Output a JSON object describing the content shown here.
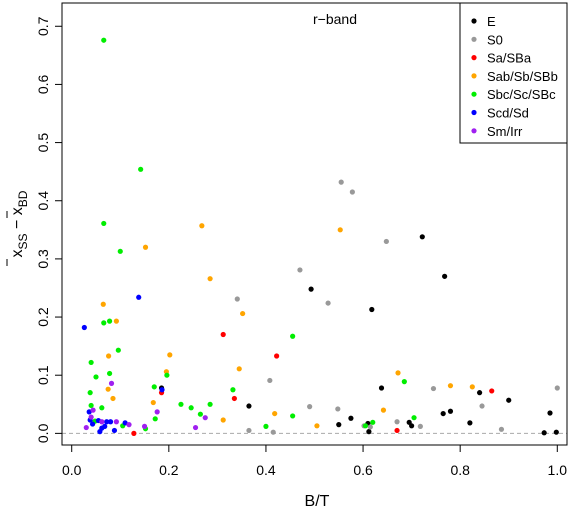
{
  "chart_data": {
    "type": "scatter",
    "title": "",
    "annotation": "r−band",
    "xlabel": "B/T",
    "ylabel": "x̄SS − x̄BD",
    "xlim": [
      -0.02,
      1.02
    ],
    "ylim": [
      -0.02,
      0.74
    ],
    "xticks": [
      "0.0",
      "0.2",
      "0.4",
      "0.6",
      "0.8",
      "1.0"
    ],
    "yticks": [
      "0.0",
      "0.1",
      "0.2",
      "0.3",
      "0.4",
      "0.5",
      "0.6",
      "0.7"
    ],
    "xtick_values": [
      0.0,
      0.2,
      0.4,
      0.6,
      0.8,
      1.0
    ],
    "ytick_values": [
      0.0,
      0.1,
      0.2,
      0.3,
      0.4,
      0.5,
      0.6,
      0.7
    ],
    "reference_line": 0.0,
    "grid": false,
    "legend_position": "top-right",
    "series": [
      {
        "name": "E",
        "color": "#000000",
        "points": [
          [
            0.722,
            0.338
          ],
          [
            0.768,
            0.27
          ],
          [
            0.493,
            0.248
          ],
          [
            0.618,
            0.213
          ],
          [
            0.365,
            0.047
          ],
          [
            0.575,
            0.026
          ],
          [
            0.55,
            0.015
          ],
          [
            0.61,
            0.017
          ],
          [
            0.612,
            0.003
          ],
          [
            0.638,
            0.078
          ],
          [
            0.695,
            0.019
          ],
          [
            0.7,
            0.013
          ],
          [
            0.765,
            0.034
          ],
          [
            0.78,
            0.038
          ],
          [
            0.82,
            0.018
          ],
          [
            0.84,
            0.07
          ],
          [
            0.9,
            0.057
          ],
          [
            0.973,
            0.001
          ],
          [
            0.985,
            0.035
          ],
          [
            0.998,
            0.002
          ],
          [
            0.185,
            0.078
          ]
        ]
      },
      {
        "name": "S0",
        "color": "#999999",
        "points": [
          [
            0.555,
            0.432
          ],
          [
            0.578,
            0.415
          ],
          [
            0.648,
            0.33
          ],
          [
            0.47,
            0.281
          ],
          [
            0.528,
            0.224
          ],
          [
            0.341,
            0.231
          ],
          [
            0.408,
            0.091
          ],
          [
            0.49,
            0.046
          ],
          [
            0.548,
            0.042
          ],
          [
            0.602,
            0.013
          ],
          [
            0.615,
            0.011
          ],
          [
            0.67,
            0.02
          ],
          [
            0.718,
            0.012
          ],
          [
            0.745,
            0.077
          ],
          [
            0.845,
            0.047
          ],
          [
            0.885,
            0.007
          ],
          [
            1.0,
            0.078
          ],
          [
            0.365,
            0.005
          ],
          [
            0.415,
            0.002
          ]
        ]
      },
      {
        "name": "Sa/SBa",
        "color": "#ff0000",
        "points": [
          [
            0.312,
            0.17
          ],
          [
            0.422,
            0.133
          ],
          [
            0.335,
            0.06
          ],
          [
            0.185,
            0.07
          ],
          [
            0.67,
            0.005
          ],
          [
            0.865,
            0.073
          ],
          [
            0.128,
            0.0
          ]
        ]
      },
      {
        "name": "Sab/Sb/SBb",
        "color": "#ffa500",
        "points": [
          [
            0.553,
            0.35
          ],
          [
            0.268,
            0.357
          ],
          [
            0.152,
            0.32
          ],
          [
            0.285,
            0.266
          ],
          [
            0.065,
            0.222
          ],
          [
            0.092,
            0.193
          ],
          [
            0.352,
            0.206
          ],
          [
            0.202,
            0.135
          ],
          [
            0.076,
            0.133
          ],
          [
            0.345,
            0.111
          ],
          [
            0.672,
            0.104
          ],
          [
            0.642,
            0.04
          ],
          [
            0.168,
            0.053
          ],
          [
            0.312,
            0.023
          ],
          [
            0.418,
            0.034
          ],
          [
            0.505,
            0.013
          ],
          [
            0.075,
            0.076
          ],
          [
            0.78,
            0.082
          ],
          [
            0.825,
            0.08
          ],
          [
            0.085,
            0.06
          ],
          [
            0.195,
            0.106
          ]
        ]
      },
      {
        "name": "Sbc/Sc/SBc",
        "color": "#00ee00",
        "points": [
          [
            0.066,
            0.676
          ],
          [
            0.142,
            0.454
          ],
          [
            0.066,
            0.361
          ],
          [
            0.1,
            0.313
          ],
          [
            0.078,
            0.193
          ],
          [
            0.066,
            0.19
          ],
          [
            0.455,
            0.167
          ],
          [
            0.04,
            0.122
          ],
          [
            0.196,
            0.1
          ],
          [
            0.096,
            0.143
          ],
          [
            0.078,
            0.103
          ],
          [
            0.05,
            0.097
          ],
          [
            0.04,
            0.048
          ],
          [
            0.17,
            0.08
          ],
          [
            0.246,
            0.044
          ],
          [
            0.332,
            0.075
          ],
          [
            0.685,
            0.089
          ],
          [
            0.705,
            0.027
          ],
          [
            0.605,
            0.013
          ],
          [
            0.455,
            0.03
          ],
          [
            0.4,
            0.012
          ],
          [
            0.265,
            0.033
          ],
          [
            0.152,
            0.008
          ],
          [
            0.105,
            0.013
          ],
          [
            0.062,
            0.044
          ],
          [
            0.172,
            0.025
          ],
          [
            0.225,
            0.05
          ],
          [
            0.038,
            0.07
          ],
          [
            0.048,
            0.021
          ],
          [
            0.285,
            0.05
          ],
          [
            0.62,
            0.019
          ]
        ]
      },
      {
        "name": "Scd/Sd",
        "color": "#0000ff",
        "points": [
          [
            0.138,
            0.234
          ],
          [
            0.026,
            0.182
          ],
          [
            0.038,
            0.023
          ],
          [
            0.043,
            0.016
          ],
          [
            0.055,
            0.022
          ],
          [
            0.062,
            0.009
          ],
          [
            0.068,
            0.012
          ],
          [
            0.072,
            0.02
          ],
          [
            0.08,
            0.02
          ],
          [
            0.088,
            0.005
          ],
          [
            0.058,
            0.003
          ],
          [
            0.11,
            0.018
          ],
          [
            0.186,
            0.075
          ],
          [
            0.036,
            0.037
          ]
        ]
      },
      {
        "name": "Sm/Irr",
        "color": "#a020f0",
        "points": [
          [
            0.082,
            0.086
          ],
          [
            0.044,
            0.04
          ],
          [
            0.03,
            0.01
          ],
          [
            0.04,
            0.028
          ],
          [
            0.092,
            0.02
          ],
          [
            0.176,
            0.037
          ],
          [
            0.275,
            0.027
          ],
          [
            0.255,
            0.01
          ],
          [
            0.15,
            0.012
          ],
          [
            0.062,
            0.02
          ],
          [
            0.118,
            0.015
          ]
        ]
      }
    ]
  }
}
